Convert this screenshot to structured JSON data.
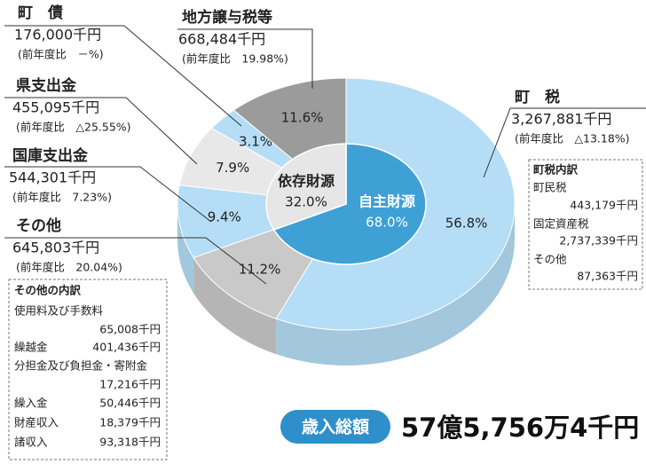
{
  "chart_data": {
    "type": "pie",
    "categories": [
      "町　税",
      "その他",
      "国庫支出金",
      "県支出金",
      "町　債",
      "地方譲与税等"
    ],
    "values": [
      56.8,
      11.2,
      9.4,
      7.9,
      3.1,
      11.6
    ],
    "value_labels": [
      "56.8%",
      "11.2%",
      "9.4%",
      "7.9%",
      "3.1%",
      "11.6%"
    ],
    "colors": [
      "#b5ddf6",
      "#c9c9c9",
      "#b5ddf6",
      "#e8e8e8",
      "#b5ddf6",
      "#9b9b9b"
    ],
    "amounts": [
      "3,267,881千円",
      "645,803千円",
      "544,301千円",
      "455,095千円",
      "176,000千円",
      "668,484千円"
    ],
    "comparisons": [
      "(前年度比　△13.18%)",
      "(前年度比　20.04%)",
      "(前年度比　7.23%)",
      "(前年度比　△25.55%)",
      "(前年度比　－%)",
      "(前年度比　19.98%)"
    ],
    "inner": {
      "categories": [
        "自主財源",
        "依存財源"
      ],
      "values": [
        68.0,
        32.0
      ],
      "value_labels": [
        "68.0%",
        "32.0%"
      ],
      "colors": [
        "#3fa0d6",
        "#e6e6e6"
      ]
    },
    "breakdowns": [
      {
        "title": "町税内訳",
        "items": [
          [
            "町民税",
            "443,179千円"
          ],
          [
            "固定資産税",
            "2,737,339千円"
          ],
          [
            "その他",
            "87,363千円"
          ]
        ]
      },
      {
        "title": "その他の内訳",
        "items": [
          [
            "使用料及び手数料",
            "65,008千円"
          ],
          [
            "繰越金",
            "401,436千円"
          ],
          [
            "分担金及び負担金・寄附金",
            "17,216千円"
          ],
          [
            "繰入金",
            "50,446千円"
          ],
          [
            "財産収入",
            "18,379千円"
          ],
          [
            "諸収入",
            "93,318千円"
          ]
        ]
      }
    ],
    "total": {
      "label": "歳入総額",
      "value": "57億5,756万4千円"
    }
  }
}
